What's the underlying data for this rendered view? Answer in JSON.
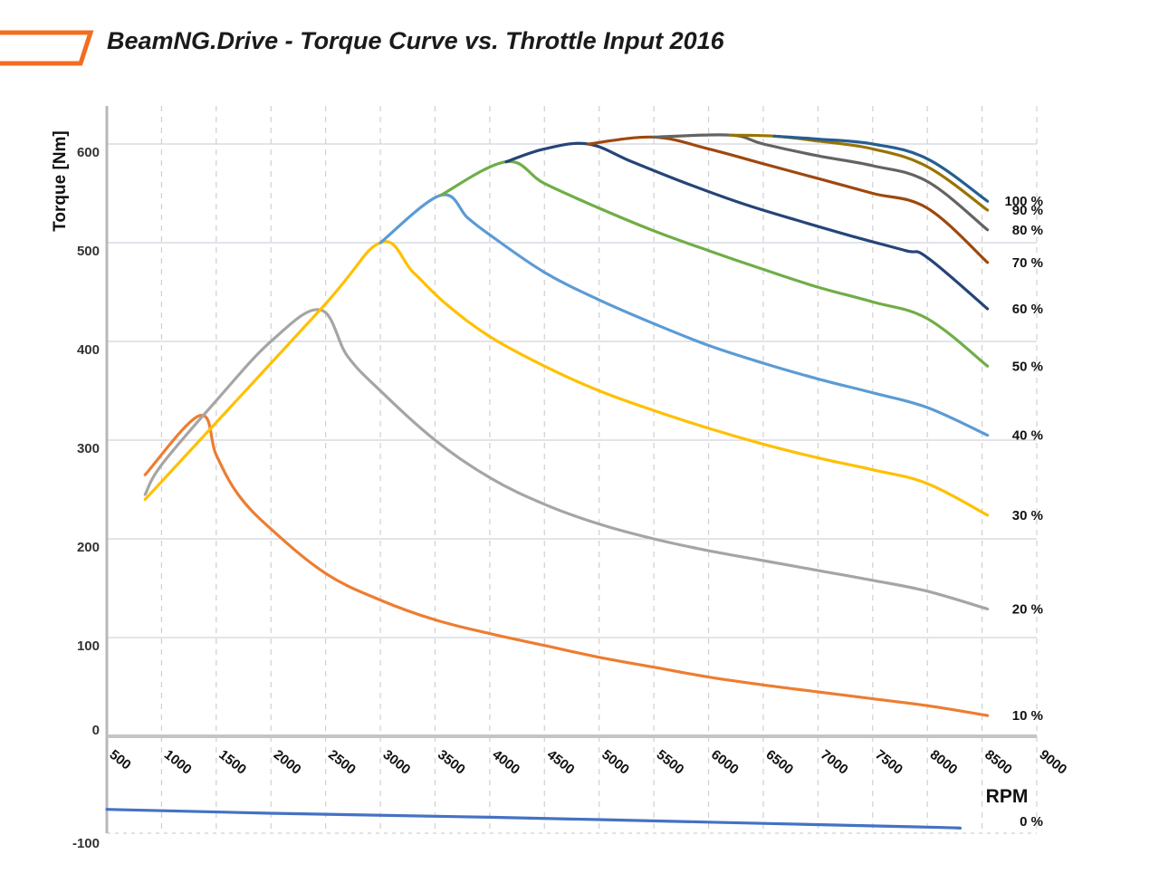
{
  "chart_data": {
    "type": "line",
    "title": "BeamNG.Drive - Torque Curve vs. Throttle Input 2016",
    "xlabel": "RPM",
    "ylabel": "Torque [Nm]",
    "xlim": [
      500,
      9000
    ],
    "ylim": [
      -100,
      600
    ],
    "x_ticks": [
      500,
      1000,
      1500,
      2000,
      2500,
      3000,
      3500,
      4000,
      4500,
      5000,
      5500,
      6000,
      6500,
      7000,
      7500,
      8000,
      8500,
      9000
    ],
    "y_ticks": [
      -100,
      0,
      100,
      200,
      300,
      400,
      500,
      600
    ],
    "grid": true,
    "legend": "inline labels at right end of each line",
    "series": [
      {
        "name": "0 %",
        "color": "#4472c4",
        "points": [
          [
            500,
            -74
          ],
          [
            2000,
            -78
          ],
          [
            4000,
            -82
          ],
          [
            6000,
            -87
          ],
          [
            8000,
            -92
          ],
          [
            8300,
            -93
          ]
        ]
      },
      {
        "name": "10 %",
        "color": "#ed7d31",
        "points": [
          [
            850,
            265
          ],
          [
            1350,
            325
          ],
          [
            1500,
            285
          ],
          [
            1700,
            245
          ],
          [
            2000,
            210
          ],
          [
            2500,
            165
          ],
          [
            3000,
            138
          ],
          [
            3500,
            118
          ],
          [
            4000,
            104
          ],
          [
            4500,
            92
          ],
          [
            5000,
            80
          ],
          [
            5500,
            70
          ],
          [
            6000,
            60
          ],
          [
            6500,
            52
          ],
          [
            7000,
            45
          ],
          [
            7500,
            38
          ],
          [
            8000,
            31
          ],
          [
            8550,
            21
          ]
        ]
      },
      {
        "name": "20 %",
        "color": "#a5a5a5",
        "points": [
          [
            850,
            245
          ],
          [
            1000,
            275
          ],
          [
            1500,
            340
          ],
          [
            2000,
            400
          ],
          [
            2450,
            432
          ],
          [
            2700,
            385
          ],
          [
            3000,
            350
          ],
          [
            3500,
            300
          ],
          [
            4000,
            262
          ],
          [
            4500,
            235
          ],
          [
            5000,
            215
          ],
          [
            5500,
            200
          ],
          [
            6000,
            188
          ],
          [
            6500,
            178
          ],
          [
            7000,
            168
          ],
          [
            7500,
            158
          ],
          [
            8000,
            147
          ],
          [
            8550,
            129
          ]
        ]
      },
      {
        "name": "30 %",
        "color": "#ffc000",
        "points": [
          [
            850,
            240
          ],
          [
            2450,
            432
          ],
          [
            3000,
            500
          ],
          [
            3300,
            470
          ],
          [
            3600,
            438
          ],
          [
            4000,
            405
          ],
          [
            4500,
            375
          ],
          [
            5000,
            350
          ],
          [
            5500,
            330
          ],
          [
            6000,
            312
          ],
          [
            6500,
            296
          ],
          [
            7000,
            282
          ],
          [
            7500,
            270
          ],
          [
            8000,
            256
          ],
          [
            8550,
            224
          ]
        ]
      },
      {
        "name": "40 %",
        "color": "#5b9bd5",
        "points": [
          [
            3000,
            500
          ],
          [
            3550,
            548
          ],
          [
            3800,
            525
          ],
          [
            4000,
            508
          ],
          [
            4500,
            470
          ],
          [
            5000,
            442
          ],
          [
            5500,
            418
          ],
          [
            6000,
            396
          ],
          [
            6500,
            378
          ],
          [
            7000,
            362
          ],
          [
            7500,
            348
          ],
          [
            8000,
            333
          ],
          [
            8550,
            305
          ]
        ]
      },
      {
        "name": "50 %",
        "color": "#70ad47",
        "points": [
          [
            3550,
            548
          ],
          [
            4150,
            582
          ],
          [
            4500,
            560
          ],
          [
            5000,
            535
          ],
          [
            5500,
            512
          ],
          [
            6000,
            492
          ],
          [
            6500,
            473
          ],
          [
            7000,
            455
          ],
          [
            7500,
            440
          ],
          [
            8000,
            423
          ],
          [
            8550,
            375
          ]
        ]
      },
      {
        "name": "60 %",
        "color": "#264478",
        "points": [
          [
            4150,
            582
          ],
          [
            4500,
            595
          ],
          [
            4900,
            600
          ],
          [
            5300,
            582
          ],
          [
            5800,
            560
          ],
          [
            6300,
            540
          ],
          [
            6800,
            523
          ],
          [
            7300,
            507
          ],
          [
            7800,
            492
          ],
          [
            8000,
            485
          ],
          [
            8550,
            433
          ]
        ]
      },
      {
        "name": "70 %",
        "color": "#9e480e",
        "points": [
          [
            4900,
            600
          ],
          [
            5500,
            607
          ],
          [
            6000,
            595
          ],
          [
            6500,
            580
          ],
          [
            7000,
            565
          ],
          [
            7500,
            550
          ],
          [
            8000,
            535
          ],
          [
            8550,
            480
          ]
        ]
      },
      {
        "name": "80 %",
        "color": "#636363",
        "points": [
          [
            5500,
            607
          ],
          [
            6200,
            609
          ],
          [
            6500,
            600
          ],
          [
            7000,
            588
          ],
          [
            7500,
            578
          ],
          [
            8000,
            562
          ],
          [
            8550,
            513
          ]
        ]
      },
      {
        "name": "90 %",
        "color": "#997300",
        "points": [
          [
            6200,
            609
          ],
          [
            6600,
            608
          ],
          [
            7000,
            603
          ],
          [
            7500,
            595
          ],
          [
            8000,
            577
          ],
          [
            8550,
            533
          ]
        ]
      },
      {
        "name": "100 %",
        "color": "#255e91",
        "points": [
          [
            6600,
            608
          ],
          [
            7000,
            605
          ],
          [
            7500,
            600
          ],
          [
            8000,
            585
          ],
          [
            8550,
            542
          ]
        ]
      }
    ]
  }
}
